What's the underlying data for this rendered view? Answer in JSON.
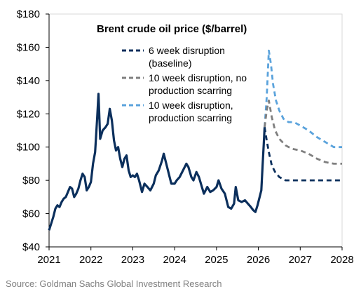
{
  "chart_data": {
    "type": "line",
    "title": "Brent crude oil price ($/barrel)",
    "xlabel": "",
    "ylabel": "",
    "xlim": [
      2021,
      2028
    ],
    "ylim": [
      40,
      180
    ],
    "x_ticks": [
      "2021",
      "2022",
      "2023",
      "2024",
      "2025",
      "2026",
      "2027",
      "2028"
    ],
    "y_ticks": [
      "$40",
      "$60",
      "$80",
      "$100",
      "$120",
      "$140",
      "$160",
      "$180"
    ],
    "grid": false,
    "legend_position": "top-center",
    "historical": {
      "color": "#0b2f5c",
      "points": [
        [
          2021.0,
          50
        ],
        [
          2021.05,
          54
        ],
        [
          2021.1,
          58
        ],
        [
          2021.15,
          63
        ],
        [
          2021.2,
          65
        ],
        [
          2021.25,
          64
        ],
        [
          2021.3,
          67
        ],
        [
          2021.35,
          69
        ],
        [
          2021.4,
          70
        ],
        [
          2021.45,
          73
        ],
        [
          2021.5,
          76
        ],
        [
          2021.55,
          75
        ],
        [
          2021.6,
          70
        ],
        [
          2021.65,
          72
        ],
        [
          2021.7,
          75
        ],
        [
          2021.75,
          80
        ],
        [
          2021.8,
          84
        ],
        [
          2021.85,
          82
        ],
        [
          2021.9,
          74
        ],
        [
          2021.95,
          76
        ],
        [
          2022.0,
          79
        ],
        [
          2022.05,
          90
        ],
        [
          2022.1,
          97
        ],
        [
          2022.15,
          118
        ],
        [
          2022.18,
          132
        ],
        [
          2022.22,
          105
        ],
        [
          2022.28,
          110
        ],
        [
          2022.35,
          112
        ],
        [
          2022.4,
          114
        ],
        [
          2022.45,
          123
        ],
        [
          2022.5,
          116
        ],
        [
          2022.55,
          104
        ],
        [
          2022.6,
          98
        ],
        [
          2022.65,
          100
        ],
        [
          2022.7,
          93
        ],
        [
          2022.75,
          88
        ],
        [
          2022.8,
          93
        ],
        [
          2022.85,
          95
        ],
        [
          2022.9,
          86
        ],
        [
          2022.95,
          82
        ],
        [
          2023.0,
          83
        ],
        [
          2023.05,
          82
        ],
        [
          2023.1,
          84
        ],
        [
          2023.15,
          80
        ],
        [
          2023.22,
          73
        ],
        [
          2023.28,
          78
        ],
        [
          2023.35,
          76
        ],
        [
          2023.42,
          74
        ],
        [
          2023.5,
          78
        ],
        [
          2023.55,
          83
        ],
        [
          2023.62,
          86
        ],
        [
          2023.7,
          92
        ],
        [
          2023.74,
          96
        ],
        [
          2023.8,
          90
        ],
        [
          2023.85,
          85
        ],
        [
          2023.92,
          78
        ],
        [
          2024.0,
          78
        ],
        [
          2024.05,
          80
        ],
        [
          2024.12,
          82
        ],
        [
          2024.2,
          86
        ],
        [
          2024.28,
          90
        ],
        [
          2024.33,
          88
        ],
        [
          2024.4,
          82
        ],
        [
          2024.45,
          80
        ],
        [
          2024.52,
          85
        ],
        [
          2024.58,
          82
        ],
        [
          2024.65,
          76
        ],
        [
          2024.7,
          72
        ],
        [
          2024.78,
          76
        ],
        [
          2024.85,
          73
        ],
        [
          2024.92,
          74
        ],
        [
          2025.0,
          76
        ],
        [
          2025.05,
          80
        ],
        [
          2025.12,
          75
        ],
        [
          2025.2,
          72
        ],
        [
          2025.28,
          64
        ],
        [
          2025.35,
          63
        ],
        [
          2025.42,
          66
        ],
        [
          2025.46,
          76
        ],
        [
          2025.52,
          68
        ],
        [
          2025.6,
          67
        ],
        [
          2025.68,
          68
        ],
        [
          2025.75,
          66
        ],
        [
          2025.82,
          64
        ],
        [
          2025.88,
          62
        ],
        [
          2025.93,
          61
        ],
        [
          2025.98,
          65
        ],
        [
          2026.03,
          70
        ],
        [
          2026.07,
          74
        ],
        [
          2026.1,
          88
        ],
        [
          2026.13,
          102
        ],
        [
          2026.15,
          112
        ]
      ]
    },
    "series": [
      {
        "name": "10 week disruption, production scarring",
        "color": "#5ba3dc",
        "dash": "dash",
        "points": [
          [
            2026.15,
            112
          ],
          [
            2026.2,
            130
          ],
          [
            2026.25,
            158
          ],
          [
            2026.3,
            150
          ],
          [
            2026.35,
            138
          ],
          [
            2026.42,
            128
          ],
          [
            2026.5,
            122
          ],
          [
            2026.6,
            117
          ],
          [
            2026.72,
            115
          ],
          [
            2026.85,
            115
          ],
          [
            2027.0,
            113
          ],
          [
            2027.2,
            110
          ],
          [
            2027.4,
            106
          ],
          [
            2027.6,
            103
          ],
          [
            2027.8,
            100
          ],
          [
            2028.0,
            100
          ]
        ]
      },
      {
        "name": "10 week disruption, no production scarring",
        "color": "#7f7f7f",
        "dash": "dash",
        "points": [
          [
            2026.15,
            112
          ],
          [
            2026.2,
            122
          ],
          [
            2026.25,
            128
          ],
          [
            2026.32,
            118
          ],
          [
            2026.4,
            110
          ],
          [
            2026.5,
            105
          ],
          [
            2026.65,
            101
          ],
          [
            2026.8,
            99
          ],
          [
            2027.0,
            98
          ],
          [
            2027.2,
            96
          ],
          [
            2027.4,
            93
          ],
          [
            2027.6,
            91
          ],
          [
            2027.8,
            90
          ],
          [
            2028.0,
            90
          ]
        ]
      },
      {
        "name": "6 week disruption (baseline)",
        "color": "#0b2f5c",
        "dash": "dash",
        "points": [
          [
            2026.15,
            112
          ],
          [
            2026.2,
            104
          ],
          [
            2026.25,
            97
          ],
          [
            2026.32,
            89
          ],
          [
            2026.4,
            85
          ],
          [
            2026.5,
            82
          ],
          [
            2026.65,
            80
          ],
          [
            2026.8,
            80
          ],
          [
            2027.0,
            80
          ],
          [
            2027.5,
            80
          ],
          [
            2028.0,
            80
          ]
        ]
      }
    ],
    "legend": [
      {
        "lines": [
          "6 week disruption",
          "(baseline)"
        ],
        "color": "#0b2f5c"
      },
      {
        "lines": [
          "10 week disruption, no",
          "production scarring"
        ],
        "color": "#7f7f7f"
      },
      {
        "lines": [
          "10 week disruption,",
          "production scarring"
        ],
        "color": "#5ba3dc"
      }
    ]
  },
  "source": "Source: Goldman Sachs Global Investment Research"
}
